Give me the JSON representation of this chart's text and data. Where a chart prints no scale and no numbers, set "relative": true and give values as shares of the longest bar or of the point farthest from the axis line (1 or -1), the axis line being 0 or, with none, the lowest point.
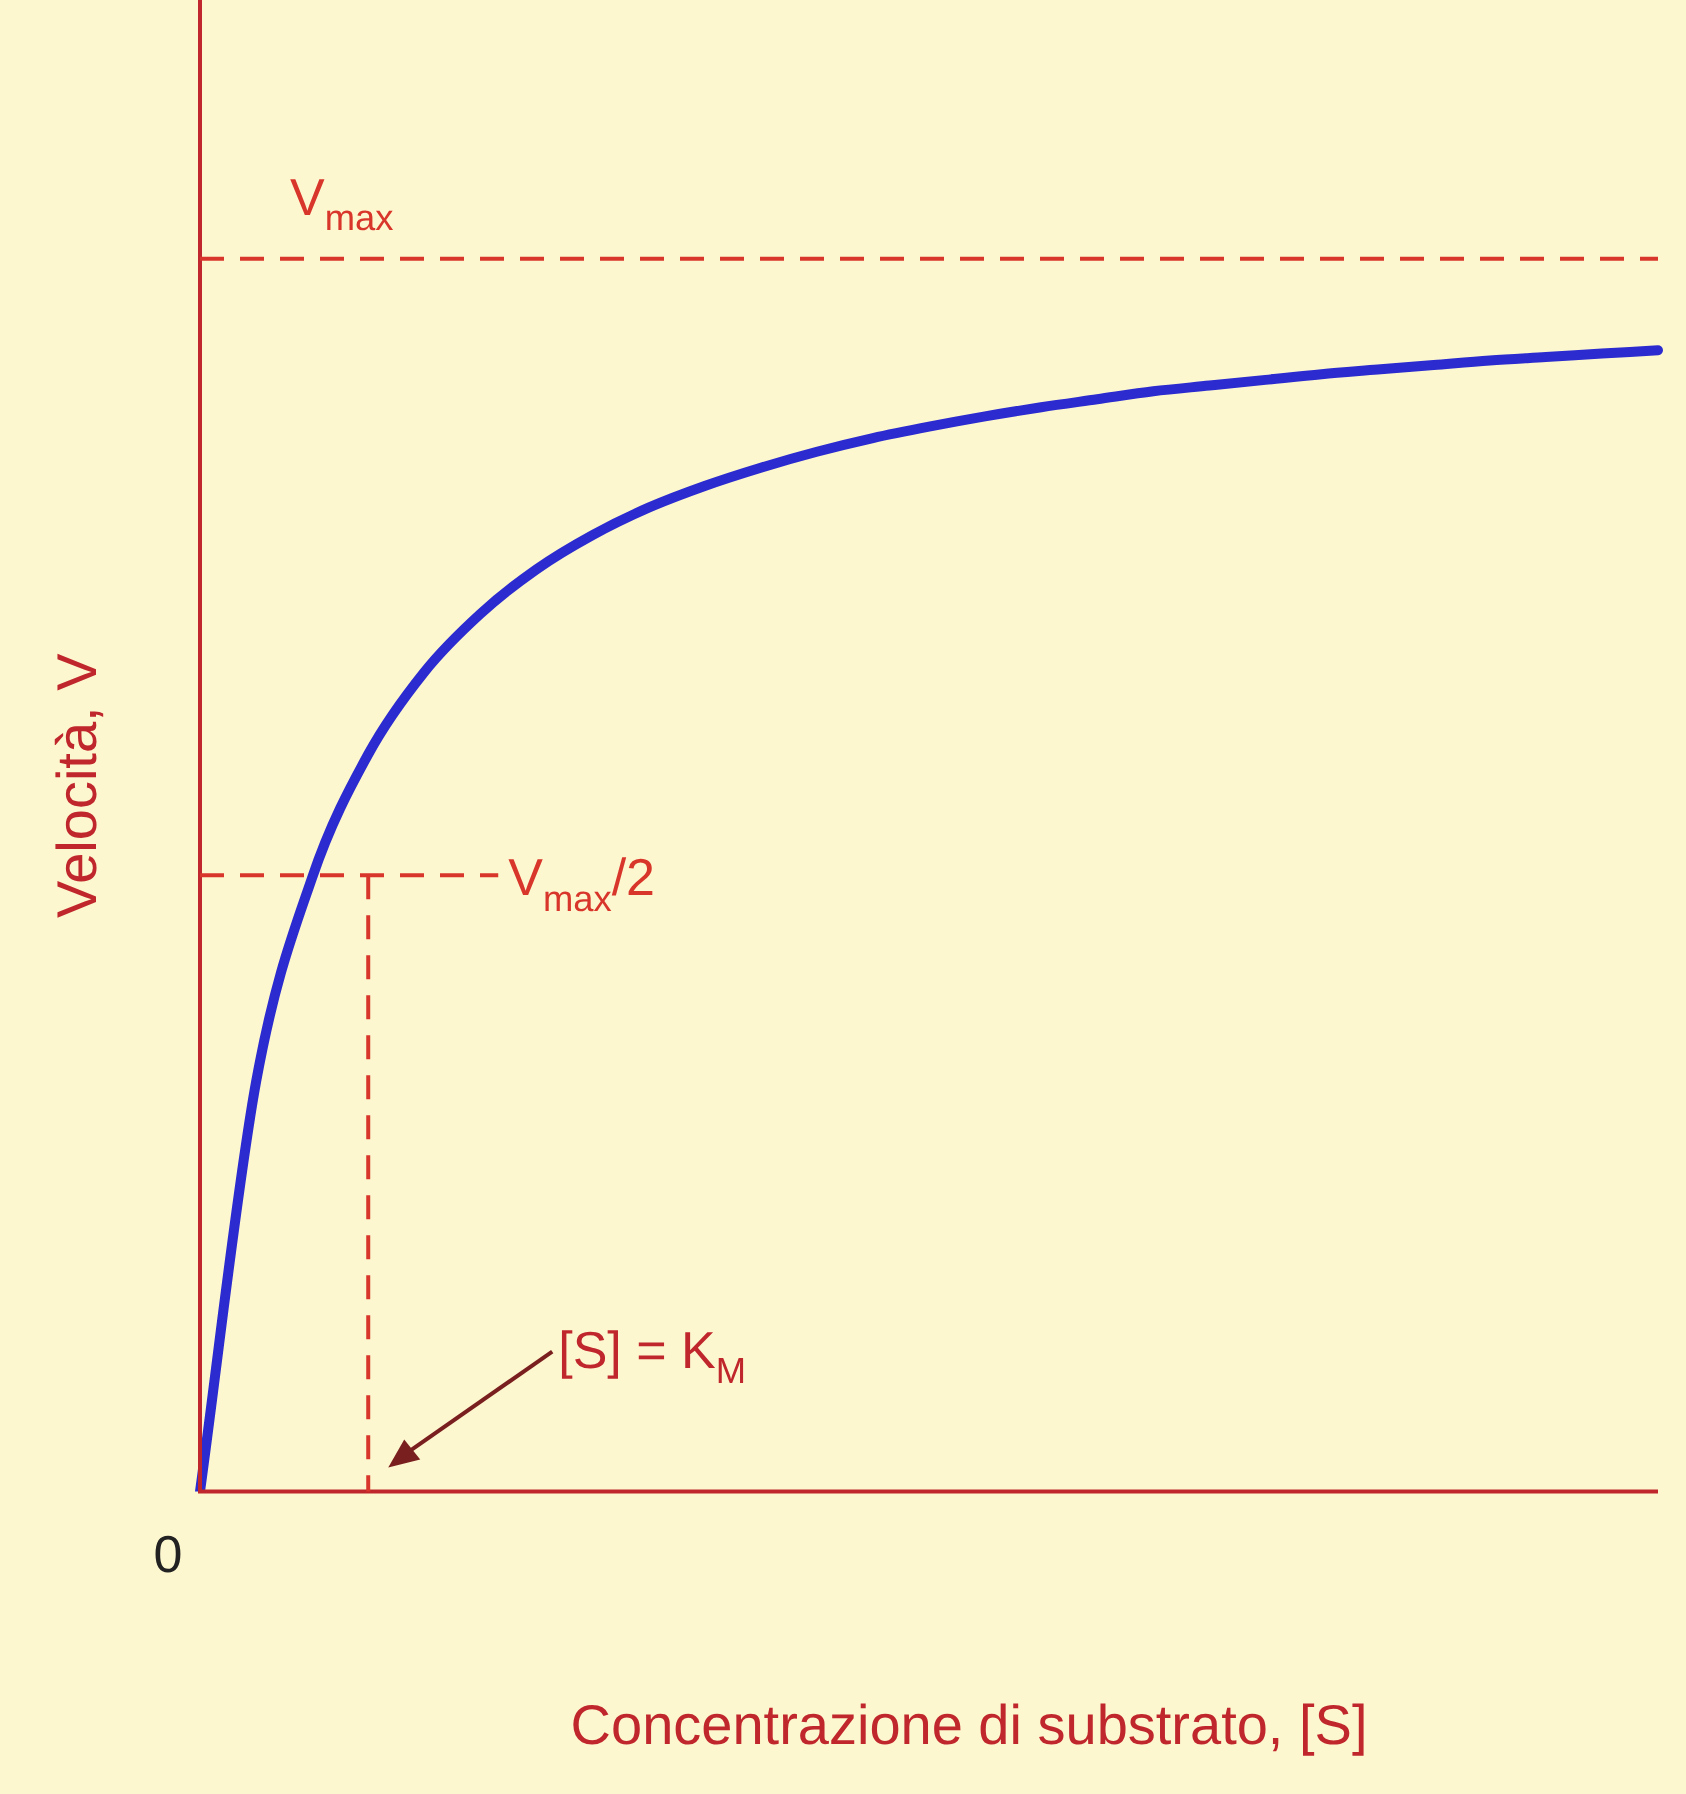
{
  "chart_data": {
    "type": "line",
    "relative": true,
    "xlabel": "Concentrazione di substrato, [S]",
    "ylabel": "Velocità, V",
    "categories": [
      null,
      null,
      null,
      null,
      null,
      null,
      null,
      null,
      null,
      null,
      null,
      null,
      null,
      null,
      null,
      null,
      null,
      null,
      null,
      null,
      null,
      null,
      null,
      null,
      null,
      null,
      null
    ],
    "series": [
      {
        "color": "#2b2bd0",
        "values": [
          0,
          0.359,
          0.538,
          0.646,
          0.718,
          0.769,
          0.808,
          0.838,
          0.862,
          0.881,
          0.897,
          0.911,
          0.923,
          0.933,
          0.942,
          0.95,
          0.957,
          0.964,
          0.969,
          0.974,
          0.979,
          0.983,
          0.987,
          0.991,
          0.994,
          0.997,
          1.0
        ]
      }
    ],
    "ref_lines": [
      {
        "axis": "y",
        "value": 1.08,
        "label": "V$_{max}$",
        "color": "#d9362b",
        "line_style": "dashed"
      },
      {
        "axis": "y",
        "value": 0.54,
        "label": "V$_{max}$/2",
        "color": "#d9362b",
        "line_style": "dashed"
      }
    ],
    "annotations": [
      "[S] = K$_{M}$",
      "0"
    ],
    "legend": false,
    "marker": "none",
    "line_style": "solid",
    "grid": false
  }
}
